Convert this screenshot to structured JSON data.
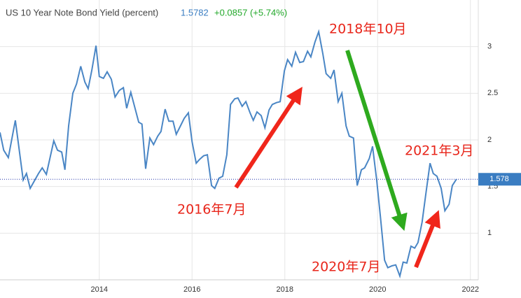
{
  "header": {
    "title": "US 10 Year Note Bond Yield (percent)",
    "price": "1.5782",
    "change": "+0.0857 (+5.74%)"
  },
  "chart_data": {
    "type": "line",
    "x": [
      2011.86,
      2011.94,
      2012.04,
      2012.19,
      2012.36,
      2012.43,
      2012.51,
      2012.69,
      2012.77,
      2012.86,
      2013.02,
      2013.1,
      2013.19,
      2013.26,
      2013.34,
      2013.43,
      2013.51,
      2013.6,
      2013.69,
      2013.76,
      2013.84,
      2013.93,
      2014.0,
      2014.09,
      2014.17,
      2014.26,
      2014.34,
      2014.43,
      2014.52,
      2014.59,
      2014.68,
      2014.76,
      2014.85,
      2014.92,
      2015.0,
      2015.09,
      2015.17,
      2015.26,
      2015.33,
      2015.42,
      2015.5,
      2015.59,
      2015.66,
      2015.75,
      2015.83,
      2015.92,
      2016.0,
      2016.09,
      2016.16,
      2016.25,
      2016.33,
      2016.42,
      2016.49,
      2016.58,
      2016.66,
      2016.75,
      2016.83,
      2016.92,
      2016.99,
      2017.08,
      2017.16,
      2017.25,
      2017.32,
      2017.4,
      2017.49,
      2017.57,
      2017.66,
      2017.73,
      2017.82,
      2017.9,
      2017.99,
      2018.06,
      2018.15,
      2018.23,
      2018.32,
      2018.4,
      2018.49,
      2018.56,
      2018.65,
      2018.73,
      2018.82,
      2018.89,
      2018.99,
      2019.06,
      2019.15,
      2019.23,
      2019.32,
      2019.39,
      2019.48,
      2019.56,
      2019.65,
      2019.72,
      2019.82,
      2019.89,
      2019.98,
      2020.06,
      2020.15,
      2020.22,
      2020.31,
      2020.39,
      2020.48,
      2020.55,
      2020.63,
      2020.72,
      2020.8,
      2020.87,
      2020.96,
      2021.04,
      2021.13,
      2021.2,
      2021.28,
      2021.37,
      2021.45,
      2021.54,
      2021.61,
      2021.7
    ],
    "series": [
      {
        "name": "US 10 Year Note Bond Yield",
        "color": "#4a86c5",
        "values": [
          2.08,
          1.89,
          1.81,
          2.21,
          1.57,
          1.64,
          1.48,
          1.64,
          1.7,
          1.63,
          1.99,
          1.89,
          1.87,
          1.68,
          2.15,
          2.5,
          2.6,
          2.79,
          2.62,
          2.55,
          2.75,
          3.01,
          2.68,
          2.66,
          2.73,
          2.65,
          2.46,
          2.53,
          2.56,
          2.34,
          2.51,
          2.36,
          2.19,
          2.17,
          1.69,
          2.02,
          1.95,
          2.04,
          2.09,
          2.33,
          2.2,
          2.2,
          2.06,
          2.15,
          2.23,
          2.29,
          1.98,
          1.75,
          1.79,
          1.83,
          1.84,
          1.51,
          1.48,
          1.59,
          1.61,
          1.84,
          2.38,
          2.44,
          2.45,
          2.36,
          2.41,
          2.29,
          2.21,
          2.3,
          2.26,
          2.13,
          2.32,
          2.38,
          2.4,
          2.41,
          2.74,
          2.86,
          2.79,
          2.94,
          2.83,
          2.84,
          2.95,
          2.89,
          3.05,
          3.16,
          2.92,
          2.71,
          2.66,
          2.75,
          2.41,
          2.5,
          2.15,
          2.04,
          2.02,
          1.51,
          1.68,
          1.7,
          1.8,
          1.93,
          1.57,
          1.18,
          0.71,
          0.63,
          0.65,
          0.66,
          0.54,
          0.69,
          0.68,
          0.86,
          0.84,
          0.9,
          1.12,
          1.42,
          1.75,
          1.64,
          1.61,
          1.48,
          1.24,
          1.31,
          1.51,
          1.58
        ]
      }
    ],
    "current_value": 1.578,
    "xlim": [
      2011.86,
      2022.17
    ],
    "ylim": [
      0.5,
      3.5
    ],
    "xticks": [
      2014,
      2016,
      2018,
      2020,
      2022
    ],
    "yticks": [
      1,
      1.5,
      2,
      2.5,
      3
    ],
    "grid": true,
    "annotations": [
      "2018年10月",
      "2021年3月",
      "2016年7月",
      "2020年7月"
    ]
  }
}
